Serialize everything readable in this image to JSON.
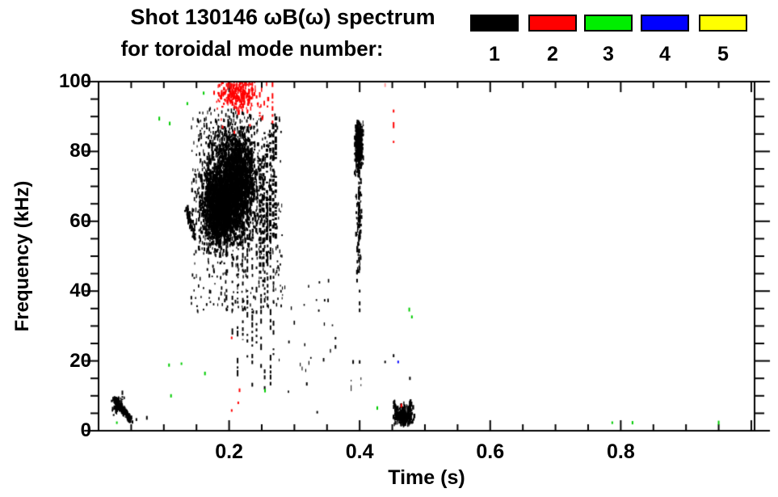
{
  "chart_data": {
    "type": "scatter",
    "title": "Shot 130146 ωB(ω) spectrum",
    "subtitle": "for toroidal mode number:",
    "xlabel": "Time (s)",
    "ylabel": "Frequency (kHz)",
    "xlim": [
      0,
      1.005
    ],
    "ylim": [
      0,
      100
    ],
    "x_major_ticks": [
      0.2,
      0.4,
      0.6,
      0.8
    ],
    "x_major_labels": [
      "0.2",
      "0.4",
      "0.6",
      "0.8"
    ],
    "x_minor_step": 0.05,
    "y_major_ticks": [
      0,
      20,
      40,
      60,
      80,
      100
    ],
    "y_major_labels": [
      "0",
      "20",
      "40",
      "60",
      "80",
      "100"
    ],
    "y_minor_step": 5,
    "grid": false,
    "legend_position": "top-right",
    "legend": {
      "entries": [
        {
          "label": "1",
          "color": "#000000"
        },
        {
          "label": "2",
          "color": "#ff0000"
        },
        {
          "label": "3",
          "color": "#00ee00"
        },
        {
          "label": "4",
          "color": "#0000ff"
        },
        {
          "label": "5",
          "color": "#ffff00"
        }
      ]
    },
    "data_colors": {
      "1": "#000000",
      "2": "#ff0000",
      "3": "#00cc00",
      "4": "#0000ff",
      "5": "#ffee00"
    },
    "features": [
      {
        "name": "n1-startup-ridge",
        "mode": 1,
        "type": "ridge",
        "n": 200,
        "p1": [
          0.026,
          8.8
        ],
        "p2": [
          0.049,
          3.2
        ],
        "jt": 0.005,
        "jf": 1.8,
        "seed": 11
      },
      {
        "name": "n1-startup-core",
        "mode": 1,
        "type": "gauss",
        "n": 60,
        "t0": 0.03,
        "f0": 7.2,
        "st": 0.004,
        "sf": 1.3,
        "seed": 12
      },
      {
        "name": "n1-startup-spike",
        "mode": 1,
        "type": "streaks",
        "width": 2,
        "density": 0.85,
        "segs": [
          [
            0.0365,
            11.5,
            8.8
          ]
        ],
        "seed": 13
      },
      {
        "name": "n1-main-core",
        "mode": 1,
        "type": "gauss",
        "n": 2100,
        "t0": 0.2,
        "f0": 67,
        "st": 0.02,
        "sf": 6.5,
        "clamp": {
          "t": [
            0.143,
            0.268
          ],
          "f": [
            40,
            90
          ]
        },
        "seed": 21
      },
      {
        "name": "n1-main-core2",
        "mode": 1,
        "type": "gauss",
        "n": 1100,
        "t0": 0.183,
        "f0": 63,
        "st": 0.013,
        "sf": 5,
        "seed": 22
      },
      {
        "name": "n1-main-core3",
        "mode": 1,
        "type": "gauss",
        "n": 650,
        "t0": 0.218,
        "f0": 72,
        "st": 0.012,
        "sf": 5.5,
        "clamp": {
          "t": [
            0.143,
            0.27
          ],
          "f": [
            40,
            92
          ]
        },
        "seed": 23
      },
      {
        "name": "n1-main-upper",
        "mode": 1,
        "type": "gauss",
        "n": 420,
        "t0": 0.205,
        "f0": 80,
        "st": 0.017,
        "sf": 4.5,
        "clamp": {
          "t": [
            0.15,
            0.268
          ],
          "f": [
            40,
            93
          ]
        },
        "seed": 24
      },
      {
        "name": "n1-upper-sparse",
        "mode": 1,
        "type": "uniform",
        "n": 70,
        "t": [
          0.15,
          0.215
        ],
        "f": [
          83,
          93
        ],
        "seed": 25
      },
      {
        "name": "n1-halo",
        "mode": 1,
        "type": "uniform",
        "n": 430,
        "t": [
          0.142,
          0.282
        ],
        "f": [
          34,
          91
        ],
        "seed": 26
      },
      {
        "name": "n1-left-crescent",
        "mode": 1,
        "type": "ridge",
        "n": 80,
        "p1": [
          0.134,
          64
        ],
        "p2": [
          0.147,
          56
        ],
        "jt": 0.004,
        "jf": 2.5,
        "seed": 27
      },
      {
        "name": "n1-downward-streaks",
        "mode": 1,
        "type": "streaks",
        "width": 2,
        "density": 0.55,
        "segs": [
          [
            0.196,
            55,
            35
          ],
          [
            0.205,
            50,
            25
          ],
          [
            0.213,
            48,
            14
          ],
          [
            0.221,
            55,
            26
          ],
          [
            0.228,
            58,
            20
          ],
          [
            0.2355,
            60,
            8
          ],
          [
            0.242,
            60,
            25
          ],
          [
            0.249,
            62,
            18
          ],
          [
            0.2545,
            62,
            10
          ],
          [
            0.259,
            65,
            30
          ],
          [
            0.2635,
            65,
            12
          ],
          [
            0.268,
            60,
            20
          ]
        ],
        "seed": 28
      },
      {
        "name": "n1-right-stripes",
        "mode": 1,
        "type": "streaks",
        "width": 3,
        "density": 0.82,
        "segs": [
          [
            0.2475,
            78,
            45
          ],
          [
            0.2525,
            80,
            42
          ],
          [
            0.258,
            82,
            48
          ],
          [
            0.263,
            85,
            50
          ],
          [
            0.2675,
            88,
            52
          ],
          [
            0.2715,
            90,
            55
          ]
        ],
        "seed": 29
      },
      {
        "name": "n1-mid-specks",
        "mode": 1,
        "type": "uniform",
        "n": 24,
        "t": [
          0.276,
          0.362
        ],
        "f": [
          4,
          44
        ],
        "seed": 31
      },
      {
        "name": "n1-t0.4-column-top",
        "mode": 1,
        "type": "gauss",
        "n": 380,
        "t0": 0.3985,
        "f0": 82,
        "st": 0.003,
        "sf": 3.6,
        "clamp": {
          "t": [
            0.392,
            0.406
          ],
          "f": [
            72,
            88.5
          ]
        },
        "seed": 32
      },
      {
        "name": "n1-t0.4-column-mid",
        "mode": 1,
        "type": "gauss",
        "n": 100,
        "t0": 0.399,
        "f0": 60,
        "st": 0.0023,
        "sf": 7,
        "clamp": {
          "t": [
            0.393,
            0.405
          ],
          "f": [
            45,
            76
          ]
        },
        "seed": 33
      },
      {
        "name": "n1-t0.4-streak",
        "mode": 1,
        "type": "streaks",
        "width": 2,
        "density": 0.7,
        "segs": [
          [
            0.3995,
            75,
            47
          ]
        ],
        "seed": 34
      },
      {
        "name": "n1-hairlines",
        "mode": 1,
        "type": "streaks",
        "width": 1,
        "density": 0.7,
        "segs": [
          [
            0.387,
            14.6,
            9.3
          ],
          [
            0.402,
            15.3,
            12.8
          ]
        ],
        "seed": 35
      },
      {
        "name": "n1-bottom-cluster",
        "mode": 1,
        "type": "gauss",
        "n": 240,
        "t0": 0.4665,
        "f0": 4.2,
        "st": 0.0075,
        "sf": 1.5,
        "clamp": {
          "t": [
            0.451,
            0.484
          ],
          "f": [
            1.6,
            9.6
          ]
        },
        "seed": 36
      },
      {
        "name": "n1-bottom-edge1",
        "mode": 1,
        "type": "ridge",
        "n": 40,
        "p1": [
          0.4525,
          8.5
        ],
        "p2": [
          0.458,
          3.5
        ],
        "jt": 0.002,
        "jf": 1.0,
        "seed": 37
      },
      {
        "name": "n1-bottom-edge2",
        "mode": 1,
        "type": "ridge",
        "n": 30,
        "p1": [
          0.473,
          3.5
        ],
        "p2": [
          0.4785,
          8.5
        ],
        "jt": 0.002,
        "jf": 1.0,
        "seed": 38
      },
      {
        "name": "n1-isolated-specks",
        "mode": 1,
        "type": "points",
        "pts": [
          [
            0.363,
            26.5
          ],
          [
            0.363,
            24
          ],
          [
            0.319,
            13.4
          ],
          [
            0.335,
            5.3
          ],
          [
            0.39,
            19.7
          ],
          [
            0.4,
            19.7
          ],
          [
            0.439,
            19.7
          ],
          [
            0.4,
            40
          ],
          [
            0.4,
            36.5
          ],
          [
            0.4,
            34.5
          ],
          [
            0.4,
            46.5
          ],
          [
            0.396,
            43
          ],
          [
            0.074,
            3.7
          ],
          [
            0.052,
            2.5
          ],
          [
            0.058,
            3.2
          ],
          [
            0.452,
            21.5
          ],
          [
            0.477,
            15
          ]
        ],
        "seed": 39
      },
      {
        "name": "n2-top-cluster",
        "mode": 2,
        "type": "gauss",
        "n": 260,
        "t0": 0.213,
        "f0": 97,
        "st": 0.016,
        "sf": 2.8,
        "clamp": {
          "t": [
            0.178,
            0.272
          ],
          "f": [
            86.5,
            100
          ]
        },
        "seed": 41
      },
      {
        "name": "n2-streaks",
        "mode": 2,
        "type": "streaks",
        "width": 2,
        "density": 0.6,
        "segs": [
          [
            0.2355,
            100,
            93
          ],
          [
            0.247,
            97,
            90
          ],
          [
            0.2665,
            100,
            88
          ],
          [
            0.452,
            92,
            86
          ],
          [
            0.452,
            84.5,
            77.5
          ]
        ],
        "seed": 42
      },
      {
        "name": "n2-specks",
        "mode": 2,
        "type": "points",
        "pts": [
          [
            0.177,
            96.8
          ],
          [
            0.19,
            87
          ],
          [
            0.208,
            85.5
          ],
          [
            0.232,
            87.5
          ],
          [
            0.204,
            26.6
          ],
          [
            0.216,
            11.6
          ],
          [
            0.214,
            8
          ],
          [
            0.204,
            5.8
          ],
          [
            0.464,
            7.2
          ]
        ],
        "seed": 43
      },
      {
        "name": "n2-faint-speck",
        "mode": 2,
        "type": "points",
        "color": "#ff9999",
        "pts": [
          [
            0.439,
            99
          ]
        ],
        "seed": 44
      },
      {
        "name": "n3-specks",
        "mode": 3,
        "type": "points",
        "pts": [
          [
            0.028,
            2.3
          ],
          [
            0.093,
            89.4
          ],
          [
            0.109,
            88
          ],
          [
            0.136,
            93.7
          ],
          [
            0.161,
            96.7
          ],
          [
            0.108,
            18.8
          ],
          [
            0.127,
            19.2
          ],
          [
            0.163,
            16.4
          ],
          [
            0.111,
            10
          ],
          [
            0.255,
            11.5
          ],
          [
            0.427,
            6.5
          ],
          [
            0.476,
            34.7
          ],
          [
            0.48,
            32.6
          ],
          [
            0.787,
            2.3
          ],
          [
            0.818,
            2.3
          ],
          [
            0.95,
            2.3
          ]
        ],
        "seed": 45
      },
      {
        "name": "n4-specks",
        "mode": 4,
        "type": "points",
        "pts": [
          [
            0.459,
            19.7
          ]
        ],
        "seed": 46
      }
    ]
  }
}
